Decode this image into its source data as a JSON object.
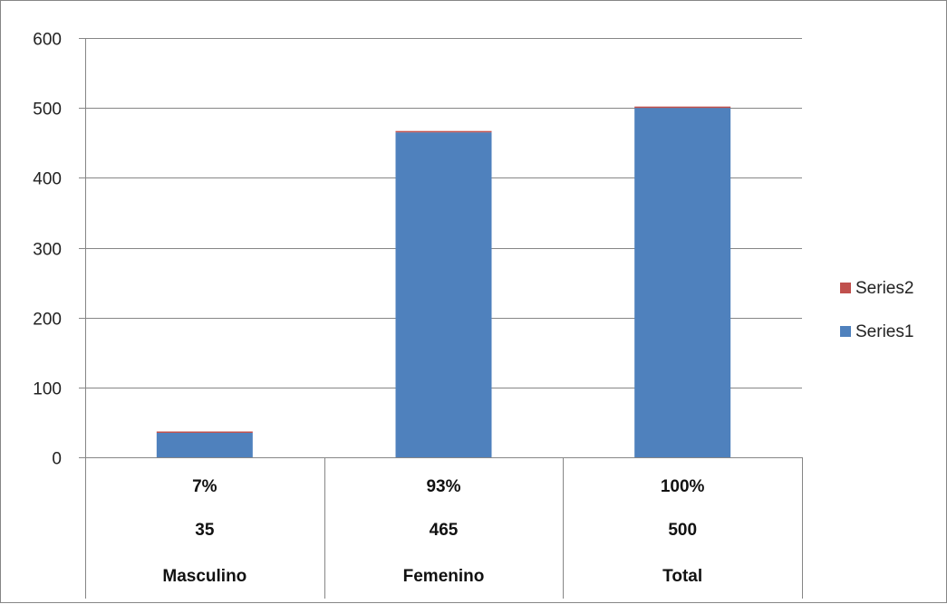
{
  "chart_data": {
    "type": "bar",
    "stacked": true,
    "categories": [
      "Masculino",
      "Femenino",
      "Total"
    ],
    "table_rows": [
      [
        "7%",
        "93%",
        "100%"
      ],
      [
        "35",
        "465",
        "500"
      ]
    ],
    "series": [
      {
        "name": "Series1",
        "values": [
          35,
          465,
          500
        ],
        "color": "#4F81BD"
      },
      {
        "name": "Series2",
        "values": [
          0.07,
          0.93,
          1
        ],
        "color": "#C0504D"
      }
    ],
    "title": "",
    "xlabel": "",
    "ylabel": "",
    "ylim": [
      0,
      600
    ],
    "yticks": [
      0,
      100,
      200,
      300,
      400,
      500,
      600
    ],
    "grid": true,
    "legend_position": "right"
  },
  "colors": {
    "gridline": "#868686",
    "axis": "#868686"
  }
}
